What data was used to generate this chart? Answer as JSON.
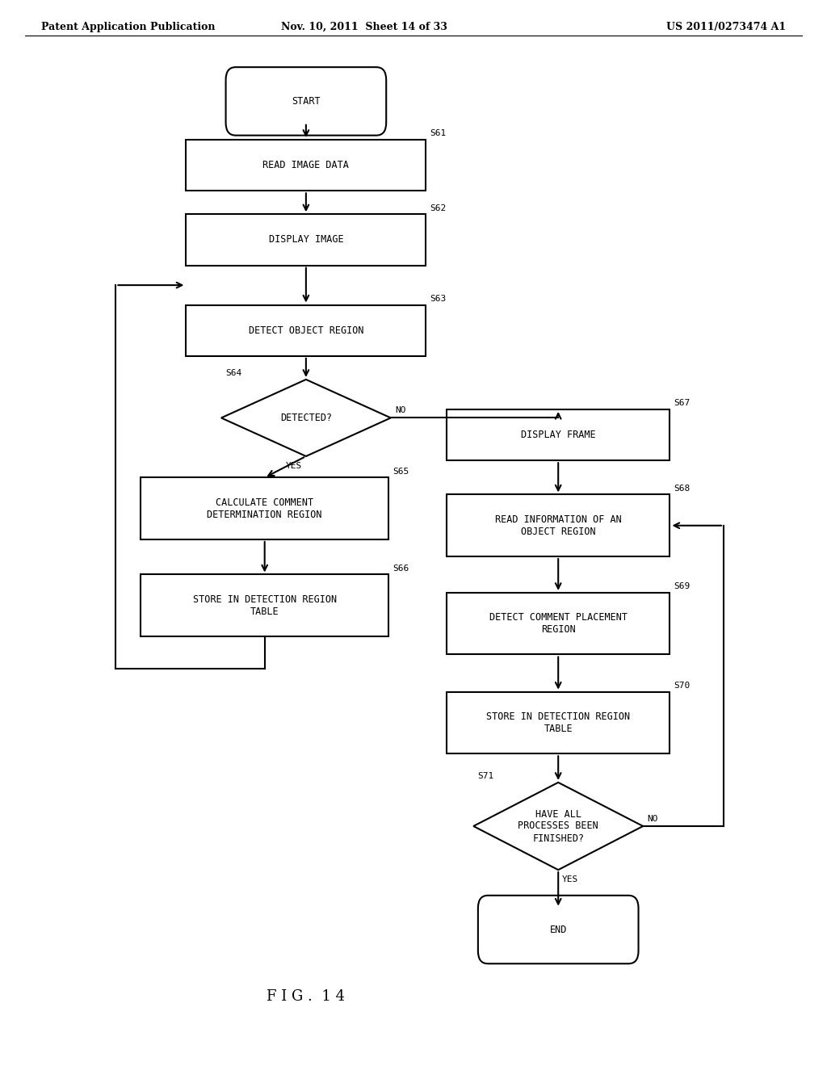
{
  "background": "#ffffff",
  "line_color": "#000000",
  "header_left": "Patent Application Publication",
  "header_mid": "Nov. 10, 2011  Sheet 14 of 33",
  "header_right": "US 2011/0273474 A1",
  "fig_label": "F I G .  1 4",
  "lw": 1.5,
  "font_size_label": 8.5,
  "font_size_step": 8,
  "font_size_header": 9,
  "font_size_fig": 13
}
